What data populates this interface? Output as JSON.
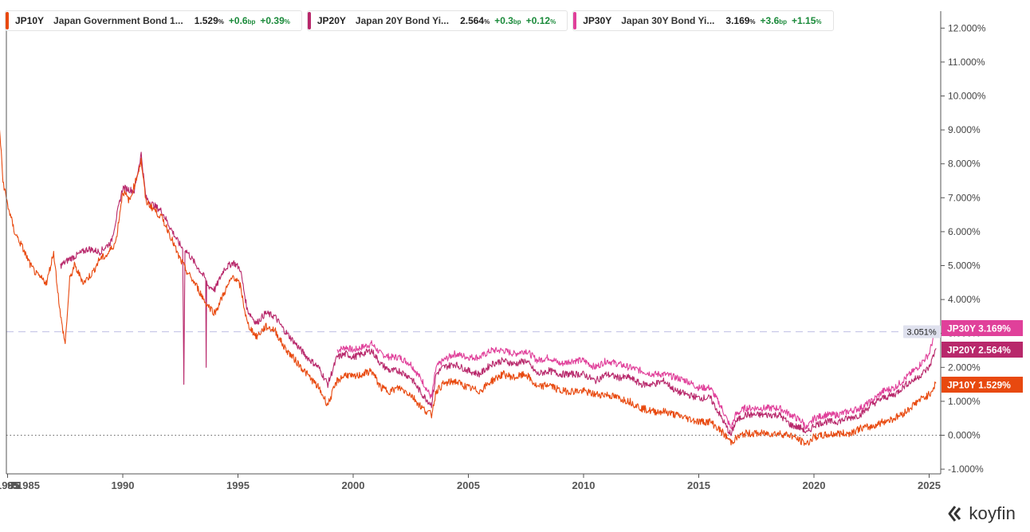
{
  "legend": [
    {
      "ticker": "JP10Y",
      "name": "Japan Government Bond 1...",
      "value": "1.529",
      "value_unit": "%",
      "chg_bp": "+0.6",
      "chg_bp_unit": "bp",
      "chg_pct": "+0.39",
      "chg_pct_unit": "%",
      "color": "#e8490f"
    },
    {
      "ticker": "JP20Y",
      "name": "Japan 20Y Bond Yi...",
      "value": "2.564",
      "value_unit": "%",
      "chg_bp": "+0.3",
      "chg_bp_unit": "bp",
      "chg_pct": "+0.12",
      "chg_pct_unit": "%",
      "color": "#b8286b"
    },
    {
      "ticker": "JP30Y",
      "name": "Japan 30Y Bond Yi...",
      "value": "3.169",
      "value_unit": "%",
      "chg_bp": "+3.6",
      "chg_bp_unit": "bp",
      "chg_pct": "+1.15",
      "chg_pct_unit": "%",
      "color": "#e0409a"
    }
  ],
  "crosshair_label": "3.051%",
  "end_labels": [
    {
      "ticker": "JP30Y",
      "value": "3.169%",
      "color": "#e0409a"
    },
    {
      "ticker": "JP20Y",
      "value": "2.564%",
      "color": "#b8286b"
    },
    {
      "ticker": "JP10Y",
      "value": "1.529%",
      "color": "#e8490f"
    }
  ],
  "brand": {
    "name": "koyfin"
  },
  "colors": {
    "axis": "#444444",
    "zero_line": "#666666",
    "crosshair": "#c9c9e8"
  },
  "chart_data": {
    "type": "line",
    "x_axis": {
      "type": "date",
      "range": [
        1984.2,
        2025.5
      ],
      "ticks": [
        1985,
        1990,
        1995,
        2000,
        2005,
        2010,
        2015,
        2020,
        2025
      ],
      "tick_labels": [
        "1985",
        "1990",
        "1995",
        "2000",
        "2005",
        "2010",
        "2015",
        "2020",
        "2025"
      ],
      "overlapped_labels_near_start": [
        "9",
        "7",
        "8",
        "5",
        "1985"
      ]
    },
    "y_axis": {
      "side": "right",
      "range": [
        -1.0,
        12.0
      ],
      "ticks": [
        -1,
        0,
        1,
        2,
        3,
        4,
        5,
        6,
        7,
        8,
        9,
        10,
        11,
        12
      ],
      "tick_labels": [
        "-1.000%",
        "0.000%",
        "1.000%",
        "2.000%",
        "3.000%",
        "4.000%",
        "5.000%",
        "6.000%",
        "7.000%",
        "8.000%",
        "9.000%",
        "10.000%",
        "11.000%",
        "12.000%"
      ]
    },
    "crosshair_y": 3.051,
    "series": [
      {
        "name": "JP10Y",
        "color": "#e8490f",
        "x": [
          1984.2,
          1984.4,
          1984.6,
          1984.8,
          1985.0,
          1985.3,
          1985.6,
          1986.0,
          1986.3,
          1986.7,
          1987.0,
          1987.3,
          1987.5,
          1987.7,
          1987.9,
          1988.3,
          1988.7,
          1989.0,
          1989.3,
          1989.7,
          1990.0,
          1990.3,
          1990.6,
          1990.8,
          1991.0,
          1991.3,
          1991.7,
          1992.0,
          1992.4,
          1992.8,
          1993.2,
          1993.6,
          1994.0,
          1994.4,
          1994.8,
          1995.1,
          1995.4,
          1995.8,
          1996.2,
          1996.6,
          1997.0,
          1997.5,
          1998.0,
          1998.5,
          1998.9,
          1999.3,
          1999.7,
          2000.0,
          2000.4,
          2000.8,
          2001.2,
          2001.6,
          2002.0,
          2002.5,
          2003.0,
          2003.4,
          2003.6,
          2003.9,
          2004.4,
          2005.0,
          2005.5,
          2006.0,
          2006.5,
          2007.0,
          2007.5,
          2008.0,
          2008.5,
          2009.0,
          2009.5,
          2010.0,
          2010.5,
          2011.0,
          2011.5,
          2012.0,
          2012.5,
          2013.0,
          2013.5,
          2014.0,
          2014.5,
          2015.0,
          2015.5,
          2016.0,
          2016.4,
          2016.6,
          2017.0,
          2017.5,
          2018.0,
          2018.5,
          2019.0,
          2019.5,
          2019.7,
          2020.0,
          2020.5,
          2021.0,
          2021.5,
          2022.0,
          2022.5,
          2023.0,
          2023.5,
          2024.0,
          2024.5,
          2025.0,
          2025.3
        ],
        "y": [
          7.2,
          6.5,
          9.6,
          7.5,
          6.8,
          6.0,
          5.6,
          5.0,
          4.7,
          4.5,
          5.4,
          3.5,
          2.7,
          4.6,
          5.0,
          4.5,
          4.8,
          5.2,
          5.3,
          5.7,
          7.2,
          6.9,
          7.6,
          8.1,
          6.9,
          6.7,
          6.4,
          6.0,
          5.3,
          4.8,
          4.4,
          3.9,
          3.6,
          4.2,
          4.7,
          4.4,
          3.3,
          2.9,
          3.2,
          3.1,
          2.6,
          2.2,
          1.8,
          1.4,
          0.9,
          1.6,
          1.8,
          1.7,
          1.8,
          1.9,
          1.4,
          1.3,
          1.4,
          1.2,
          0.8,
          0.6,
          1.3,
          1.5,
          1.6,
          1.4,
          1.3,
          1.6,
          1.8,
          1.7,
          1.8,
          1.4,
          1.5,
          1.3,
          1.3,
          1.3,
          1.2,
          1.2,
          1.1,
          1.0,
          0.8,
          0.7,
          0.7,
          0.6,
          0.5,
          0.4,
          0.4,
          0.1,
          -0.2,
          -0.1,
          0.05,
          0.05,
          0.05,
          0.05,
          0.0,
          -0.2,
          -0.25,
          -0.05,
          0.0,
          0.05,
          0.05,
          0.2,
          0.25,
          0.4,
          0.5,
          0.7,
          1.0,
          1.2,
          1.53
        ]
      },
      {
        "name": "JP20Y",
        "color": "#b8286b",
        "x": [
          1987.3,
          1987.7,
          1988.0,
          1988.5,
          1989.0,
          1989.5,
          1990.0,
          1990.5,
          1990.8,
          1991.0,
          1991.3,
          1991.7,
          1992.0,
          1992.4,
          1992.6,
          1992.65,
          1992.7,
          1992.8,
          1993.2,
          1993.6,
          1993.62,
          1993.64,
          1993.7,
          1994.0,
          1994.4,
          1994.8,
          1995.1,
          1995.4,
          1995.8,
          1996.2,
          1996.6,
          1997.0,
          1997.5,
          1998.0,
          1998.5,
          1998.9,
          1999.3,
          1999.7,
          2000.0,
          2000.4,
          2000.8,
          2001.2,
          2001.6,
          2002.0,
          2002.5,
          2003.0,
          2003.4,
          2003.6,
          2003.9,
          2004.4,
          2005.0,
          2005.5,
          2006.0,
          2006.5,
          2007.0,
          2007.5,
          2008.0,
          2008.5,
          2009.0,
          2009.5,
          2010.0,
          2010.5,
          2011.0,
          2011.5,
          2012.0,
          2012.5,
          2013.0,
          2013.5,
          2014.0,
          2014.5,
          2015.0,
          2015.5,
          2016.0,
          2016.4,
          2016.6,
          2017.0,
          2017.5,
          2018.0,
          2018.5,
          2019.0,
          2019.5,
          2019.7,
          2020.0,
          2020.5,
          2021.0,
          2021.5,
          2022.0,
          2022.5,
          2023.0,
          2023.5,
          2024.0,
          2024.5,
          2025.0,
          2025.3
        ],
        "y": [
          5.0,
          5.2,
          5.3,
          5.5,
          5.4,
          5.7,
          7.3,
          7.2,
          8.3,
          7.0,
          6.8,
          6.6,
          6.2,
          5.7,
          5.5,
          1.5,
          5.5,
          5.4,
          5.0,
          4.6,
          2.0,
          4.5,
          4.4,
          4.3,
          4.9,
          5.1,
          4.9,
          3.7,
          3.3,
          3.6,
          3.5,
          3.1,
          2.7,
          2.3,
          2.0,
          1.5,
          2.3,
          2.4,
          2.3,
          2.4,
          2.5,
          2.1,
          1.9,
          1.9,
          1.7,
          1.2,
          0.9,
          1.8,
          2.0,
          2.1,
          1.9,
          1.8,
          2.1,
          2.2,
          2.1,
          2.2,
          1.8,
          1.9,
          1.8,
          1.8,
          1.8,
          1.6,
          1.8,
          1.7,
          1.7,
          1.5,
          1.5,
          1.6,
          1.3,
          1.2,
          1.1,
          1.1,
          0.5,
          0.0,
          0.4,
          0.6,
          0.6,
          0.6,
          0.6,
          0.3,
          0.2,
          0.05,
          0.3,
          0.4,
          0.4,
          0.5,
          0.6,
          0.9,
          1.1,
          1.2,
          1.5,
          1.7,
          2.0,
          2.56
        ]
      },
      {
        "name": "JP30Y",
        "color": "#e0409a",
        "x": [
          1999.3,
          1999.7,
          2000.0,
          2000.4,
          2000.8,
          2001.2,
          2001.6,
          2002.0,
          2002.5,
          2003.0,
          2003.4,
          2003.6,
          2003.9,
          2004.4,
          2005.0,
          2005.5,
          2006.0,
          2006.5,
          2007.0,
          2007.5,
          2008.0,
          2008.5,
          2009.0,
          2009.5,
          2010.0,
          2010.5,
          2011.0,
          2011.5,
          2012.0,
          2012.5,
          2013.0,
          2013.5,
          2014.0,
          2014.5,
          2015.0,
          2015.5,
          2016.0,
          2016.4,
          2016.6,
          2017.0,
          2017.5,
          2018.0,
          2018.5,
          2019.0,
          2019.5,
          2019.7,
          2020.0,
          2020.5,
          2021.0,
          2021.5,
          2022.0,
          2022.5,
          2023.0,
          2023.5,
          2024.0,
          2024.5,
          2025.0,
          2025.3
        ],
        "y": [
          2.5,
          2.6,
          2.5,
          2.6,
          2.7,
          2.4,
          2.3,
          2.3,
          2.1,
          1.6,
          1.1,
          2.0,
          2.2,
          2.4,
          2.3,
          2.3,
          2.5,
          2.5,
          2.4,
          2.5,
          2.2,
          2.3,
          2.1,
          2.2,
          2.2,
          2.0,
          2.2,
          2.1,
          2.0,
          1.9,
          1.8,
          1.8,
          1.7,
          1.6,
          1.4,
          1.4,
          0.8,
          0.2,
          0.6,
          0.8,
          0.8,
          0.8,
          0.8,
          0.6,
          0.4,
          0.2,
          0.5,
          0.6,
          0.6,
          0.7,
          0.8,
          1.0,
          1.3,
          1.4,
          1.7,
          2.0,
          2.4,
          3.17
        ]
      }
    ]
  }
}
